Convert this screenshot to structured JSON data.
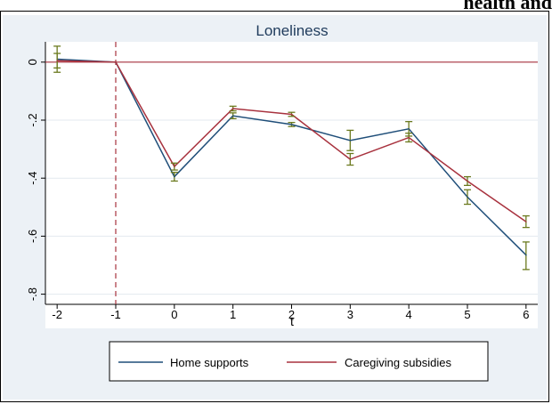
{
  "page_header": "health and",
  "chart_data": {
    "type": "line",
    "title": "Loneliness",
    "xlabel": "t",
    "ylabel": "",
    "x": [
      -2,
      -1,
      0,
      1,
      2,
      3,
      4,
      5,
      6
    ],
    "xticks": [
      "-2",
      "-1",
      "0",
      "1",
      "2",
      "3",
      "4",
      "5",
      "6"
    ],
    "yticks": [
      0,
      -0.2,
      -0.4,
      -0.6,
      -0.8
    ],
    "ytick_labels": [
      "0",
      "-.2",
      "-.4",
      "-.6",
      "-.8"
    ],
    "xlim": [
      -2.2,
      6.2
    ],
    "ylim": [
      -0.835,
      0.07
    ],
    "reference_lines": {
      "horizontal_y": 0,
      "vertical_x": -1
    },
    "grid": "horizontal",
    "legend_position": "bottom",
    "series": [
      {
        "name": "Home supports",
        "color": "#1f4e79",
        "values": [
          0.01,
          0,
          -0.395,
          -0.185,
          -0.215,
          -0.27,
          -0.23,
          -0.465,
          -0.665
        ],
        "ci_low": [
          -0.035,
          0,
          -0.41,
          -0.195,
          -0.222,
          -0.305,
          -0.255,
          -0.49,
          -0.715
        ],
        "ci_high": [
          0.055,
          0,
          -0.38,
          -0.175,
          -0.208,
          -0.235,
          -0.205,
          -0.44,
          -0.62
        ]
      },
      {
        "name": "Caregiving subsidies",
        "color": "#a8323e",
        "values": [
          0.005,
          0,
          -0.36,
          -0.16,
          -0.18,
          -0.335,
          -0.26,
          -0.41,
          -0.55
        ],
        "ci_low": [
          -0.02,
          0,
          -0.372,
          -0.168,
          -0.187,
          -0.355,
          -0.275,
          -0.425,
          -0.57
        ],
        "ci_high": [
          0.03,
          0,
          -0.348,
          -0.152,
          -0.173,
          -0.315,
          -0.245,
          -0.395,
          -0.53
        ]
      }
    ],
    "ci_color": "#6b7a1e",
    "refline_color": "#a8323e"
  }
}
